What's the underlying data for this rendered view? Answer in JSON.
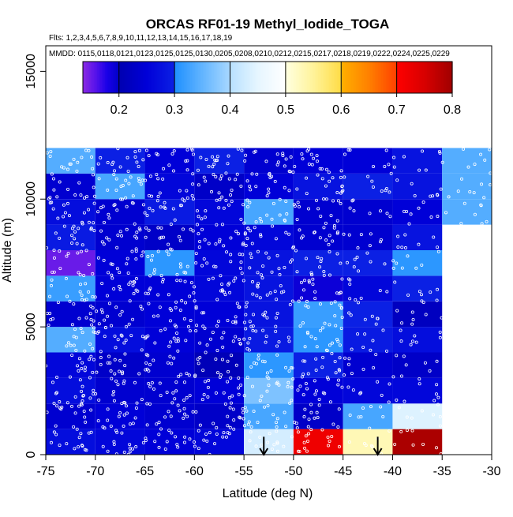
{
  "chart_data": {
    "type": "heatmap",
    "title": "ORCAS RF01-19 Methyl_Iodide_TOGA",
    "flights_label": "Flts: 1,2,3,4,5,6,7,8,9,10,11,12,13,14,15,16,17,18,19",
    "dates_label": "MMDD: 0115,0118,0121,0123,0125,0125,0130,0205,0208,0210,0212,0215,0217,0218,0219,0222,0224,0225,0229",
    "xlabel": "Latitude (deg N)",
    "ylabel": "Altitude (m)",
    "xlim": [
      -75,
      -30
    ],
    "ylim": [
      0,
      16000
    ],
    "x_ticks": [
      -75,
      -70,
      -65,
      -60,
      -55,
      -50,
      -45,
      -40,
      -35,
      -30
    ],
    "x_tick_labels": [
      "-75",
      "-70",
      "-65",
      "-60",
      "-55",
      "-50",
      "-45",
      "-40",
      "-35",
      "-30"
    ],
    "y_ticks": [
      0,
      5000,
      10000,
      15000
    ],
    "y_tick_labels": [
      "0",
      "5000",
      "10000",
      "15000"
    ],
    "grid": false,
    "colorbar": {
      "ticks": [
        0.2,
        0.3,
        0.4,
        0.5,
        0.6,
        0.7,
        0.8
      ],
      "tick_labels": [
        "0.2",
        "0.3",
        "0.4",
        "0.5",
        "0.6",
        "0.7",
        "0.8"
      ],
      "range": [
        0.135,
        0.8
      ],
      "segments": [
        {
          "from": 0.135,
          "to": 0.2,
          "colors": [
            "#8a2be2",
            "#5a14ea",
            "#1a00e8",
            "#0000c8"
          ]
        },
        {
          "from": 0.2,
          "to": 0.3,
          "colors": [
            "#0000b0",
            "#0000d8",
            "#0b20e4"
          ]
        },
        {
          "from": 0.3,
          "to": 0.4,
          "colors": [
            "#1e90ff",
            "#62b4ff",
            "#a8d8ff"
          ]
        },
        {
          "from": 0.4,
          "to": 0.5,
          "colors": [
            "#b8e0ff",
            "#e6f6ff",
            "#ffffff"
          ]
        },
        {
          "from": 0.5,
          "to": 0.6,
          "colors": [
            "#ffffe0",
            "#fff39a",
            "#ffdc46"
          ]
        },
        {
          "from": 0.6,
          "to": 0.7,
          "colors": [
            "#ffb000",
            "#ff8000",
            "#ff4000"
          ]
        },
        {
          "from": 0.7,
          "to": 0.8,
          "colors": [
            "#ff0000",
            "#d80000",
            "#a00000"
          ]
        }
      ]
    },
    "cell_width_deg": 5,
    "cell_height_m": 1000,
    "cells": [
      {
        "lat": -75,
        "alt": 0,
        "value": 0.27
      },
      {
        "lat": -70,
        "alt": 0,
        "value": 0.26
      },
      {
        "lat": -65,
        "alt": 0,
        "value": 0.25
      },
      {
        "lat": -60,
        "alt": 0,
        "value": 0.26
      },
      {
        "lat": -55,
        "alt": 0,
        "value": 0.43
      },
      {
        "lat": -50,
        "alt": 0,
        "value": 0.72
      },
      {
        "lat": -45,
        "alt": 0,
        "value": 0.53
      },
      {
        "lat": -40,
        "alt": 0,
        "value": 0.79
      },
      {
        "lat": -75,
        "alt": 1000,
        "value": 0.24
      },
      {
        "lat": -70,
        "alt": 1000,
        "value": 0.25
      },
      {
        "lat": -65,
        "alt": 1000,
        "value": 0.24
      },
      {
        "lat": -60,
        "alt": 1000,
        "value": 0.23
      },
      {
        "lat": -55,
        "alt": 1000,
        "value": 0.33
      },
      {
        "lat": -50,
        "alt": 1000,
        "value": 0.23
      },
      {
        "lat": -45,
        "alt": 1000,
        "value": 0.33
      },
      {
        "lat": -40,
        "alt": 1000,
        "value": 0.44
      },
      {
        "lat": -75,
        "alt": 2000,
        "value": 0.27
      },
      {
        "lat": -70,
        "alt": 2000,
        "value": 0.24
      },
      {
        "lat": -65,
        "alt": 2000,
        "value": 0.24
      },
      {
        "lat": -60,
        "alt": 2000,
        "value": 0.25
      },
      {
        "lat": -55,
        "alt": 2000,
        "value": 0.37
      },
      {
        "lat": -50,
        "alt": 2000,
        "value": 0.25
      },
      {
        "lat": -45,
        "alt": 2000,
        "value": 0.26
      },
      {
        "lat": -40,
        "alt": 2000,
        "value": 0.26
      },
      {
        "lat": -75,
        "alt": 3000,
        "value": 0.26
      },
      {
        "lat": -70,
        "alt": 3000,
        "value": 0.23
      },
      {
        "lat": -65,
        "alt": 3000,
        "value": 0.24
      },
      {
        "lat": -60,
        "alt": 3000,
        "value": 0.21
      },
      {
        "lat": -55,
        "alt": 3000,
        "value": 0.31
      },
      {
        "lat": -50,
        "alt": 3000,
        "value": 0.3
      },
      {
        "lat": -45,
        "alt": 3000,
        "value": 0.24
      },
      {
        "lat": -40,
        "alt": 3000,
        "value": 0.23
      },
      {
        "lat": -75,
        "alt": 4000,
        "value": 0.34
      },
      {
        "lat": -70,
        "alt": 4000,
        "value": 0.27
      },
      {
        "lat": -65,
        "alt": 4000,
        "value": 0.25
      },
      {
        "lat": -60,
        "alt": 4000,
        "value": 0.24
      },
      {
        "lat": -55,
        "alt": 4000,
        "value": 0.29
      },
      {
        "lat": -50,
        "alt": 4000,
        "value": 0.31
      },
      {
        "lat": -45,
        "alt": 4000,
        "value": 0.29
      },
      {
        "lat": -40,
        "alt": 4000,
        "value": 0.27
      },
      {
        "lat": -75,
        "alt": 5000,
        "value": 0.24
      },
      {
        "lat": -70,
        "alt": 5000,
        "value": 0.24
      },
      {
        "lat": -65,
        "alt": 5000,
        "value": 0.25
      },
      {
        "lat": -60,
        "alt": 5000,
        "value": 0.25
      },
      {
        "lat": -55,
        "alt": 5000,
        "value": 0.28
      },
      {
        "lat": -50,
        "alt": 5000,
        "value": 0.32
      },
      {
        "lat": -45,
        "alt": 5000,
        "value": 0.3
      },
      {
        "lat": -40,
        "alt": 5000,
        "value": 0.22
      },
      {
        "lat": -75,
        "alt": 6000,
        "value": 0.32
      },
      {
        "lat": -70,
        "alt": 6000,
        "value": 0.25
      },
      {
        "lat": -65,
        "alt": 6000,
        "value": 0.25
      },
      {
        "lat": -60,
        "alt": 6000,
        "value": 0.26
      },
      {
        "lat": -55,
        "alt": 6000,
        "value": 0.28
      },
      {
        "lat": -50,
        "alt": 6000,
        "value": 0.19
      },
      {
        "lat": -45,
        "alt": 6000,
        "value": 0.26
      },
      {
        "lat": -40,
        "alt": 6000,
        "value": 0.3
      },
      {
        "lat": -75,
        "alt": 7000,
        "value": 0.15
      },
      {
        "lat": -70,
        "alt": 7000,
        "value": 0.25
      },
      {
        "lat": -65,
        "alt": 7000,
        "value": 0.31
      },
      {
        "lat": -60,
        "alt": 7000,
        "value": 0.26
      },
      {
        "lat": -55,
        "alt": 7000,
        "value": 0.28
      },
      {
        "lat": -50,
        "alt": 7000,
        "value": 0.3
      },
      {
        "lat": -45,
        "alt": 7000,
        "value": 0.3
      },
      {
        "lat": -40,
        "alt": 7000,
        "value": 0.31
      },
      {
        "lat": -75,
        "alt": 8000,
        "value": 0.29
      },
      {
        "lat": -70,
        "alt": 8000,
        "value": 0.24
      },
      {
        "lat": -65,
        "alt": 8000,
        "value": 0.23
      },
      {
        "lat": -60,
        "alt": 8000,
        "value": 0.25
      },
      {
        "lat": -55,
        "alt": 8000,
        "value": 0.26
      },
      {
        "lat": -50,
        "alt": 8000,
        "value": 0.24
      },
      {
        "lat": -45,
        "alt": 8000,
        "value": 0.24
      },
      {
        "lat": -40,
        "alt": 8000,
        "value": 0.28
      },
      {
        "lat": -75,
        "alt": 9000,
        "value": 0.27
      },
      {
        "lat": -70,
        "alt": 9000,
        "value": 0.24
      },
      {
        "lat": -65,
        "alt": 9000,
        "value": 0.29
      },
      {
        "lat": -60,
        "alt": 9000,
        "value": 0.26
      },
      {
        "lat": -55,
        "alt": 9000,
        "value": 0.33
      },
      {
        "lat": -50,
        "alt": 9000,
        "value": 0.24
      },
      {
        "lat": -45,
        "alt": 9000,
        "value": 0.24
      },
      {
        "lat": -40,
        "alt": 9000,
        "value": 0.25
      },
      {
        "lat": -35,
        "alt": 9000,
        "value": 0.34
      },
      {
        "lat": -75,
        "alt": 10000,
        "value": 0.24
      },
      {
        "lat": -70,
        "alt": 10000,
        "value": 0.33
      },
      {
        "lat": -65,
        "alt": 10000,
        "value": 0.26
      },
      {
        "lat": -60,
        "alt": 10000,
        "value": 0.23
      },
      {
        "lat": -55,
        "alt": 10000,
        "value": 0.25
      },
      {
        "lat": -50,
        "alt": 10000,
        "value": 0.28
      },
      {
        "lat": -45,
        "alt": 10000,
        "value": 0.3
      },
      {
        "lat": -40,
        "alt": 10000,
        "value": 0.28
      },
      {
        "lat": -35,
        "alt": 10000,
        "value": 0.34
      },
      {
        "lat": -75,
        "alt": 11000,
        "value": 0.34
      },
      {
        "lat": -70,
        "alt": 11000,
        "value": 0.3
      },
      {
        "lat": -65,
        "alt": 11000,
        "value": 0.25
      },
      {
        "lat": -60,
        "alt": 11000,
        "value": 0.3
      },
      {
        "lat": -55,
        "alt": 11000,
        "value": 0.24
      },
      {
        "lat": -50,
        "alt": 11000,
        "value": 0.25
      },
      {
        "lat": -45,
        "alt": 11000,
        "value": 0.25
      },
      {
        "lat": -40,
        "alt": 11000,
        "value": 0.28
      },
      {
        "lat": -35,
        "alt": 11000,
        "value": 0.34
      }
    ],
    "markers": [
      {
        "type": "arrow-down",
        "lat": -53,
        "alt_top": 700,
        "alt_bottom": 0
      },
      {
        "type": "arrow-down",
        "lat": -41.5,
        "alt_top": 700,
        "alt_bottom": 0
      }
    ],
    "observation_points": "white open circles scattered densely from -75 to -35 deg N, 0 to 12000 m"
  }
}
